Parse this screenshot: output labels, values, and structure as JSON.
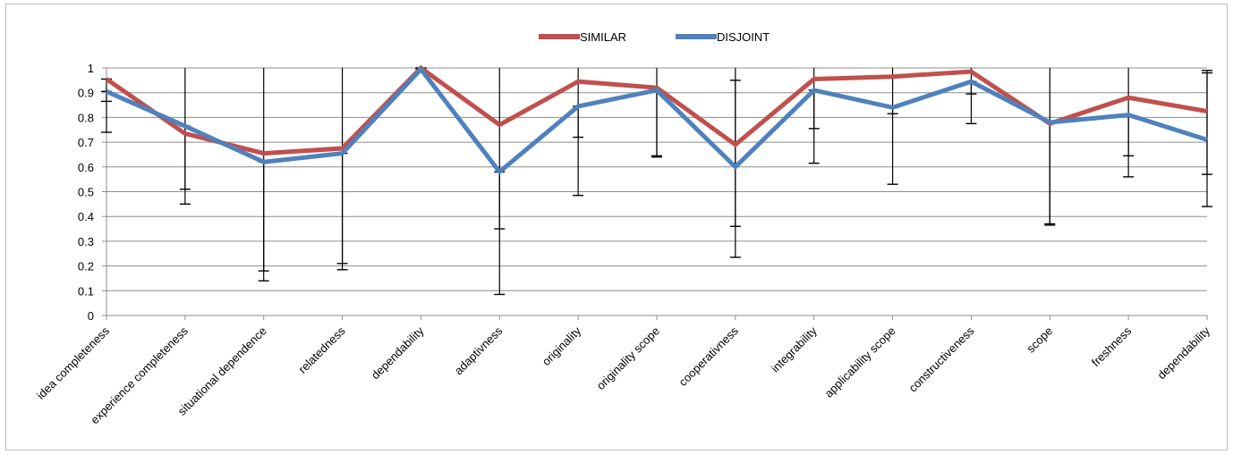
{
  "chart_data": {
    "type": "line",
    "title": "",
    "xlabel": "",
    "ylabel": "",
    "ylim": [
      0,
      1
    ],
    "yticks": [
      0,
      0.1,
      0.2,
      0.3,
      0.4,
      0.5,
      0.6,
      0.7,
      0.8,
      0.9,
      1
    ],
    "ytick_labels": [
      "0",
      "0.1",
      "0.2",
      "0.3",
      "0.4",
      "0.5",
      "0.6",
      "0.7",
      "0.8",
      "0.9",
      "1"
    ],
    "grid": true,
    "legend_position": "top-center",
    "categories": [
      "idea completeness",
      "experience completeness",
      "situational dependence",
      "relatedness",
      "dependability",
      "adaptivness",
      "originality",
      "originality scope",
      "cooperativness",
      "integrability",
      "applicability scope",
      "constructiveness",
      "scope",
      "freshness",
      "dependability"
    ],
    "series": [
      {
        "name": "SIMILAR",
        "color": "#c0504d",
        "values": [
          0.955,
          0.735,
          0.655,
          0.675,
          1.0,
          0.77,
          0.945,
          0.92,
          0.69,
          0.955,
          0.965,
          0.985,
          0.775,
          0.88,
          0.825
        ],
        "error_low": [
          0.74,
          0.45,
          0.14,
          0.185,
          1.0,
          0.35,
          0.485,
          0.645,
          0.235,
          0.615,
          0.53,
          0.775,
          0.365,
          0.56,
          0.57
        ],
        "error_high": [
          0.955,
          1.0,
          1.0,
          1.0,
          1.0,
          1.0,
          1.0,
          1.0,
          1.0,
          1.0,
          1.0,
          1.0,
          1.0,
          1.0,
          0.99
        ]
      },
      {
        "name": "DISJOINT",
        "color": "#4f81bd",
        "values": [
          0.905,
          0.765,
          0.62,
          0.655,
          0.995,
          0.58,
          0.845,
          0.91,
          0.6,
          0.91,
          0.84,
          0.945,
          0.78,
          0.81,
          0.71
        ],
        "error_low": [
          0.865,
          0.51,
          0.18,
          0.21,
          0.995,
          0.085,
          0.72,
          0.64,
          0.36,
          0.755,
          0.815,
          0.895,
          0.37,
          0.645,
          0.44
        ],
        "error_high": [
          0.905,
          0.765,
          0.62,
          0.655,
          0.995,
          0.58,
          0.845,
          0.91,
          0.95,
          0.91,
          0.84,
          0.945,
          0.78,
          0.81,
          0.98
        ]
      }
    ]
  }
}
